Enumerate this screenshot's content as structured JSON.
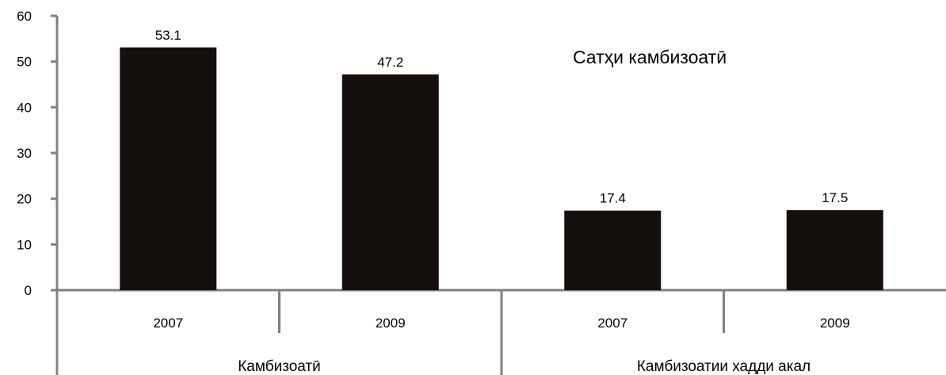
{
  "chart_data": {
    "type": "bar",
    "title": "Сатҳи камбизоатӣ",
    "xlabel": "",
    "ylabel": "",
    "ylim": [
      0,
      60
    ],
    "yticks": [
      0,
      10,
      20,
      30,
      40,
      50,
      60
    ],
    "grid": false,
    "groups": [
      {
        "label": "Камбизоатӣ",
        "categories": [
          "2007",
          "2009"
        ],
        "values": [
          53.1,
          47.2
        ]
      },
      {
        "label": "Камбизоатии хадди акал",
        "categories": [
          "2007",
          "2009"
        ],
        "values": [
          17.4,
          17.5
        ]
      }
    ],
    "colors": {
      "bar": "#140f0c",
      "axis": "#808080"
    }
  }
}
